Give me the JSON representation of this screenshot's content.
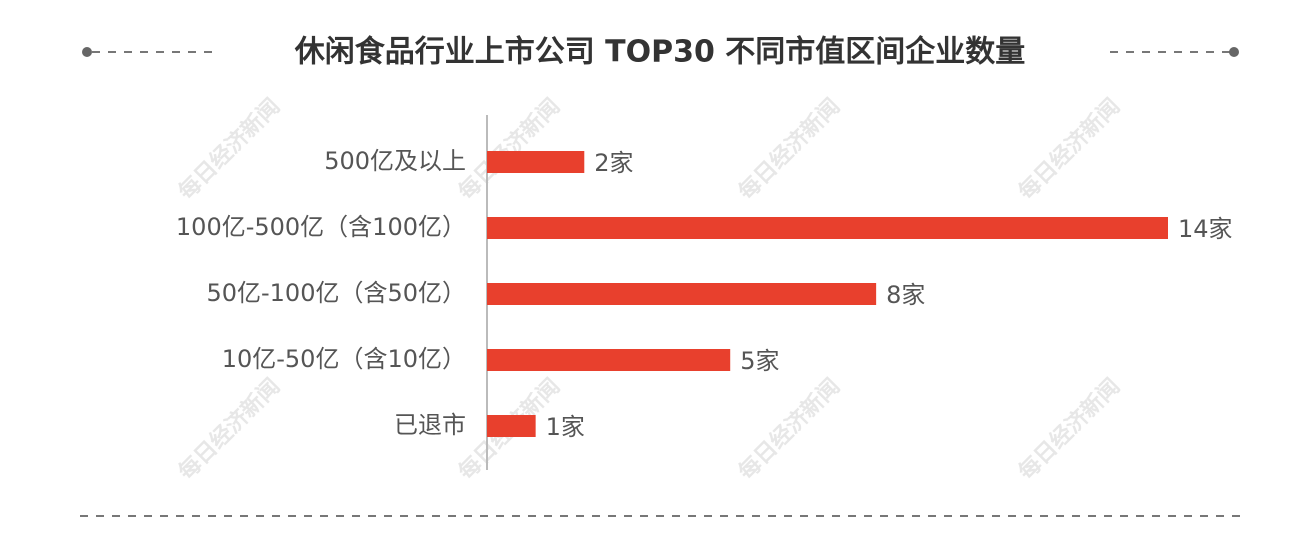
{
  "chart_data": {
    "type": "bar",
    "orientation": "horizontal",
    "title": "休闲食品行业上市公司 TOP30 不同市值区间企业数量",
    "categories": [
      "500亿及以上",
      "100亿-500亿（含100亿）",
      "50亿-100亿（含50亿）",
      "10亿-50亿（含10亿）",
      "已退市"
    ],
    "values": [
      2,
      14,
      8,
      5,
      1
    ],
    "value_labels": [
      "2家",
      "14家",
      "8家",
      "5家",
      "1家"
    ],
    "color": "#e8402d",
    "xlim": [
      0,
      14
    ],
    "watermark": "每日经济新闻"
  }
}
